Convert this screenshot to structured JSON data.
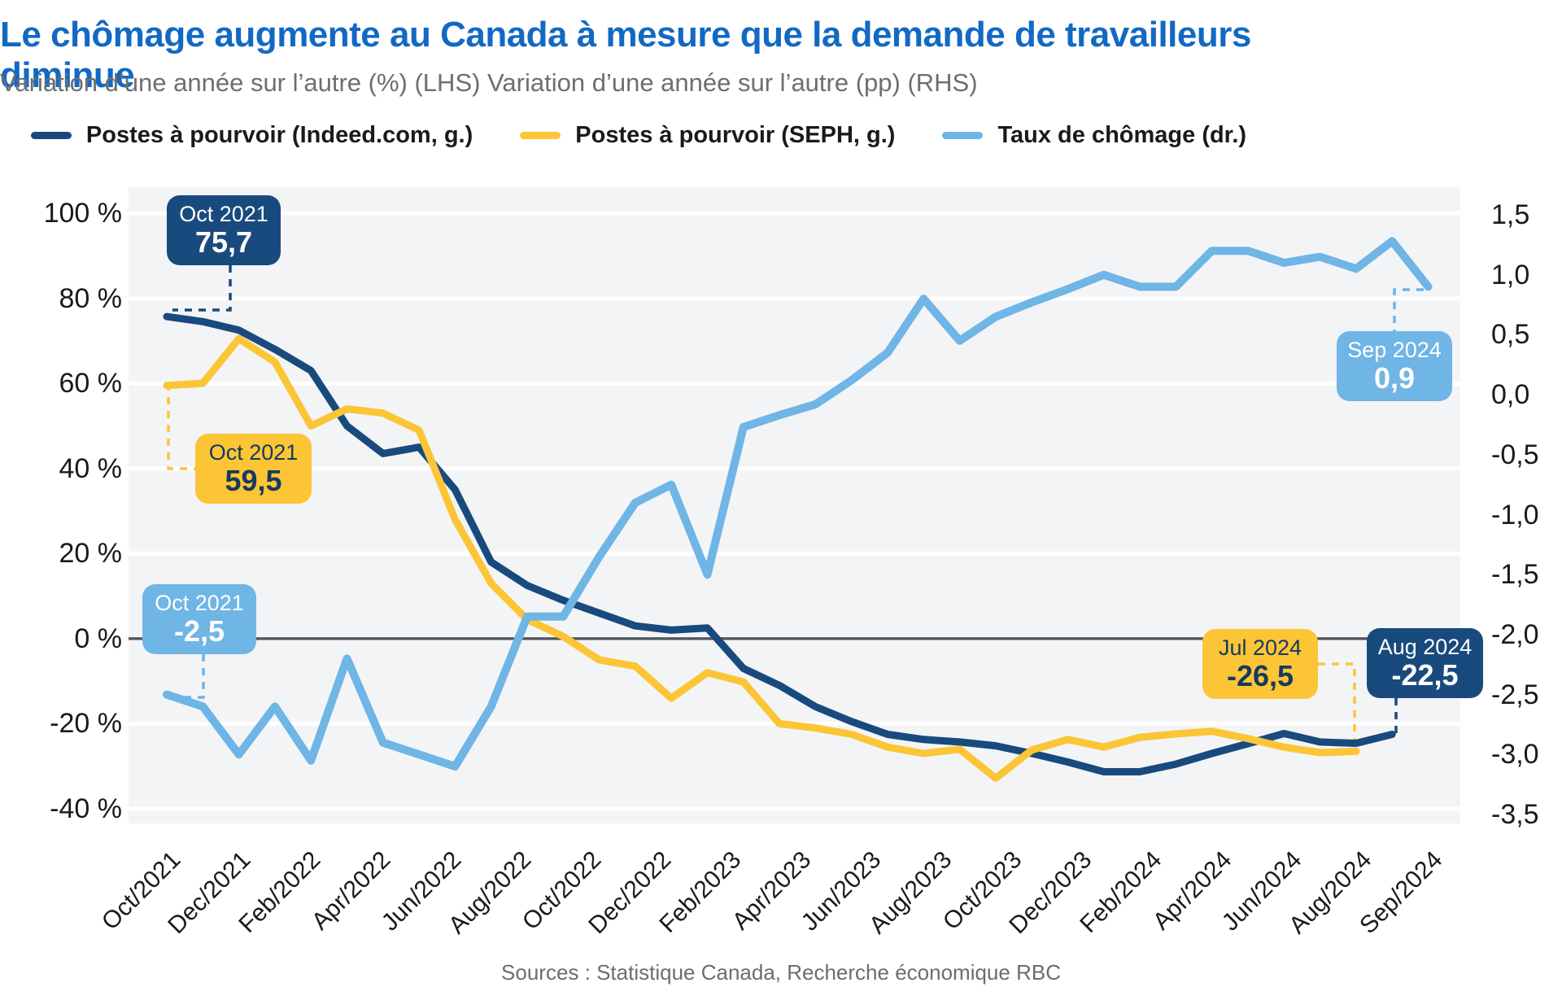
{
  "title": "Le chômage augmente au Canada à mesure que la demande de travailleurs diminue",
  "subtitle": "Variation d’une année sur l’autre (%) (LHS) Variation d’une année sur l’autre (pp) (RHS)",
  "source": "Sources : Statistique Canada, Recherche économique RBC",
  "colors": {
    "title_blue": "#1269c4",
    "navy": "#194a7d",
    "yellow": "#fbc535",
    "lightblue": "#6fb5e5",
    "plot_bg": "#f3f4f6",
    "gridline": "#ffffff",
    "zero_line": "#54585c",
    "axis_text": "#1a1a1a",
    "subtitle_gray": "#6e6e6e",
    "source_gray": "#6d6d6d"
  },
  "legend": [
    {
      "label": "Postes à pourvoir (Indeed.com, g.)",
      "series": "indeed"
    },
    {
      "label": "Postes à pourvoir (SEPH, g.)",
      "series": "seph"
    },
    {
      "label": "Taux de chômage (dr.)",
      "series": "ur"
    }
  ],
  "chart_data": {
    "type": "line",
    "title": "Le chômage augmente au Canada à mesure que la demande de travailleurs diminue",
    "subtitle": "Variation d’une année sur l’autre (%) (LHS) Variation d’une année sur l’autre (pp) (RHS)",
    "grid": "horizontal",
    "legend_position": "top",
    "months": [
      "Oct 2021",
      "Nov 2021",
      "Dec 2021",
      "Jan 2022",
      "Feb 2022",
      "Mar 2022",
      "Apr 2022",
      "May 2022",
      "Jun 2022",
      "Jul 2022",
      "Aug 2022",
      "Sep 2022",
      "Oct 2022",
      "Nov 2022",
      "Dec 2022",
      "Jan 2023",
      "Feb 2023",
      "Mar 2023",
      "Apr 2023",
      "May 2023",
      "Jun 2023",
      "Jul 2023",
      "Aug 2023",
      "Sep 2023",
      "Oct 2023",
      "Nov 2023",
      "Dec 2023",
      "Jan 2024",
      "Feb 2024",
      "Mar 2024",
      "Apr 2024",
      "May 2024",
      "Jun 2024",
      "Jul 2024",
      "Aug 2024",
      "Sep 2024"
    ],
    "left_axis": {
      "range": [
        -40,
        100
      ],
      "ticks": [
        {
          "label": "100 %",
          "value": 100
        },
        {
          "label": "80 %",
          "value": 80
        },
        {
          "label": "60 %",
          "value": 60
        },
        {
          "label": "40 %",
          "value": 40
        },
        {
          "label": "20 %",
          "value": 20
        },
        {
          "label": "0 %",
          "value": 0
        },
        {
          "label": "-20 %",
          "value": -20
        },
        {
          "label": "-40 %",
          "value": -40
        }
      ]
    },
    "right_axis": {
      "range": [
        -3.5,
        1.5
      ],
      "ticks": [
        {
          "label": "1,5",
          "value": 1.5
        },
        {
          "label": "1,0",
          "value": 1.0
        },
        {
          "label": "0,5",
          "value": 0.5
        },
        {
          "label": "0,0",
          "value": 0.0
        },
        {
          "label": "-0,5",
          "value": -0.5
        },
        {
          "label": "-1,0",
          "value": -1.0
        },
        {
          "label": "-1,5",
          "value": -1.5
        },
        {
          "label": "-2,0",
          "value": -2.0
        },
        {
          "label": "-2,5",
          "value": -2.5
        },
        {
          "label": "-3,0",
          "value": -3.0
        },
        {
          "label": "-3,5",
          "value": -3.5
        }
      ]
    },
    "x_axis": {
      "labels": [
        "Oct/2021",
        "Dec/2021",
        "Feb/2022",
        "Apr/2022",
        "Jun/2022",
        "Aug/2022",
        "Oct/2022",
        "Dec/2022",
        "Feb/2023",
        "Apr/2023",
        "Jun/2023",
        "Aug/2023",
        "Oct/2023",
        "Dec/2023",
        "Feb/2024",
        "Apr/2024",
        "Jun/2024",
        "Aug/2024",
        "Sep/2024"
      ]
    },
    "series": [
      {
        "id": "indeed",
        "name": "Postes à pourvoir (Indeed.com, g.)",
        "axis": "left",
        "color": "#194a7d",
        "start_month": "Oct 2021",
        "values": [
          75.7,
          74.5,
          72.5,
          68,
          63,
          50,
          43.5,
          45,
          35,
          18,
          12.5,
          9,
          6,
          3,
          2,
          2.5,
          -7,
          -11,
          -16,
          -19.5,
          -22.5,
          -23.7,
          -24.3,
          -25.2,
          -27,
          -29,
          -31.3,
          -31.3,
          -29.5,
          -27,
          -24.7,
          -22.3,
          -24.3,
          -24.6,
          -22.5
        ]
      },
      {
        "id": "seph",
        "name": "Postes à pourvoir (SEPH, g.)",
        "axis": "left",
        "color": "#fbc535",
        "start_month": "Oct 2021",
        "values": [
          59.5,
          60,
          70.5,
          65,
          50,
          54,
          53,
          49,
          28,
          13,
          4.5,
          0.5,
          -5,
          -6.5,
          -14,
          -8,
          -10.2,
          -20,
          -21,
          -22.5,
          -25.5,
          -27,
          -26,
          -32.8,
          -26.2,
          -23.7,
          -25.5,
          -23.2,
          -22.4,
          -21.8,
          -23.5,
          -25.5,
          -26.8,
          -26.5
        ]
      },
      {
        "id": "ur",
        "name": "Taux de chômage (dr.)",
        "axis": "right",
        "color": "#6fb5e5",
        "start_month": "Oct 2021",
        "values": [
          -2.5,
          -2.6,
          -3.0,
          -2.6,
          -3.05,
          -2.2,
          -2.9,
          -3.0,
          -3.1,
          -2.6,
          -1.85,
          -1.85,
          -1.35,
          -0.9,
          -0.75,
          -1.5,
          -0.27,
          -0.17,
          -0.08,
          0.12,
          0.35,
          0.8,
          0.45,
          0.65,
          0.77,
          0.88,
          1.0,
          0.9,
          0.9,
          1.2,
          1.2,
          1.1,
          1.15,
          1.05,
          1.28,
          0.9
        ]
      }
    ],
    "annotations": [
      {
        "id": "indeed_start",
        "series": "indeed",
        "date": "Oct 2021",
        "value": "75,7",
        "style": "navy"
      },
      {
        "id": "seph_start",
        "series": "seph",
        "date": "Oct 2021",
        "value": "59,5",
        "style": "yellow"
      },
      {
        "id": "ur_start",
        "series": "ur",
        "date": "Oct 2021",
        "value": "-2,5",
        "style": "lightblue"
      },
      {
        "id": "ur_end",
        "series": "ur",
        "date": "Sep 2024",
        "value": "0,9",
        "style": "lightblue"
      },
      {
        "id": "seph_end",
        "series": "seph",
        "date": "Jul 2024",
        "value": "-26,5",
        "style": "yellow"
      },
      {
        "id": "indeed_end",
        "series": "indeed",
        "date": "Aug 2024",
        "value": "-22,5",
        "style": "navy"
      }
    ]
  }
}
